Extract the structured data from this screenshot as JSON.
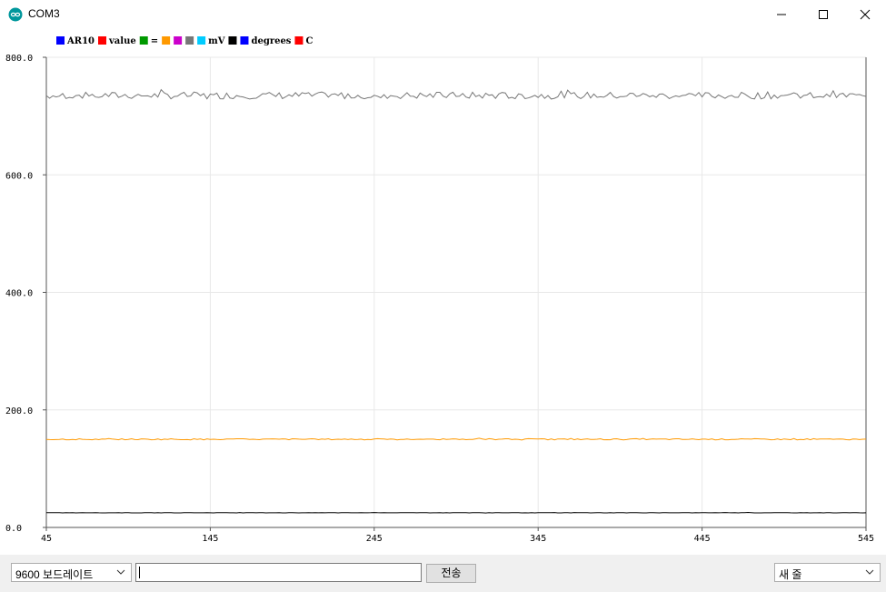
{
  "window": {
    "title": "COM3"
  },
  "legend": [
    {
      "color": "#0000ff",
      "label": "AR10"
    },
    {
      "color": "#ff0000",
      "label": "value"
    },
    {
      "color": "#009900",
      "label": "="
    },
    {
      "color": "#ff9900",
      "label": ""
    },
    {
      "color": "#cc00cc",
      "label": ""
    },
    {
      "color": "#777777",
      "label": ""
    },
    {
      "color": "#00ccff",
      "label": "mV"
    },
    {
      "color": "#000000",
      "label": ""
    },
    {
      "color": "#0000ff",
      "label": "degrees"
    },
    {
      "color": "#ff0000",
      "label": "C"
    }
  ],
  "chart_data": {
    "type": "line",
    "x_ticks": [
      "45",
      "145",
      "245",
      "345",
      "445",
      "545"
    ],
    "y_ticks": [
      "0.0",
      "200.0",
      "400.0",
      "600.0",
      "800.0"
    ],
    "xlim": [
      45,
      545
    ],
    "ylim": [
      0,
      800
    ],
    "grid": true,
    "series": [
      {
        "color": "#777777",
        "approx_value": 735,
        "noise": 6
      },
      {
        "color": "#ff9900",
        "approx_value": 150,
        "noise": 1
      },
      {
        "color": "#000000",
        "approx_value": 25,
        "noise": 0.3
      }
    ]
  },
  "controls": {
    "baud_rate": "9600 보드레이트",
    "send_label": "전송",
    "line_ending": "새 줄",
    "message_value": ""
  },
  "colors": {
    "app_icon": "#00979c"
  }
}
